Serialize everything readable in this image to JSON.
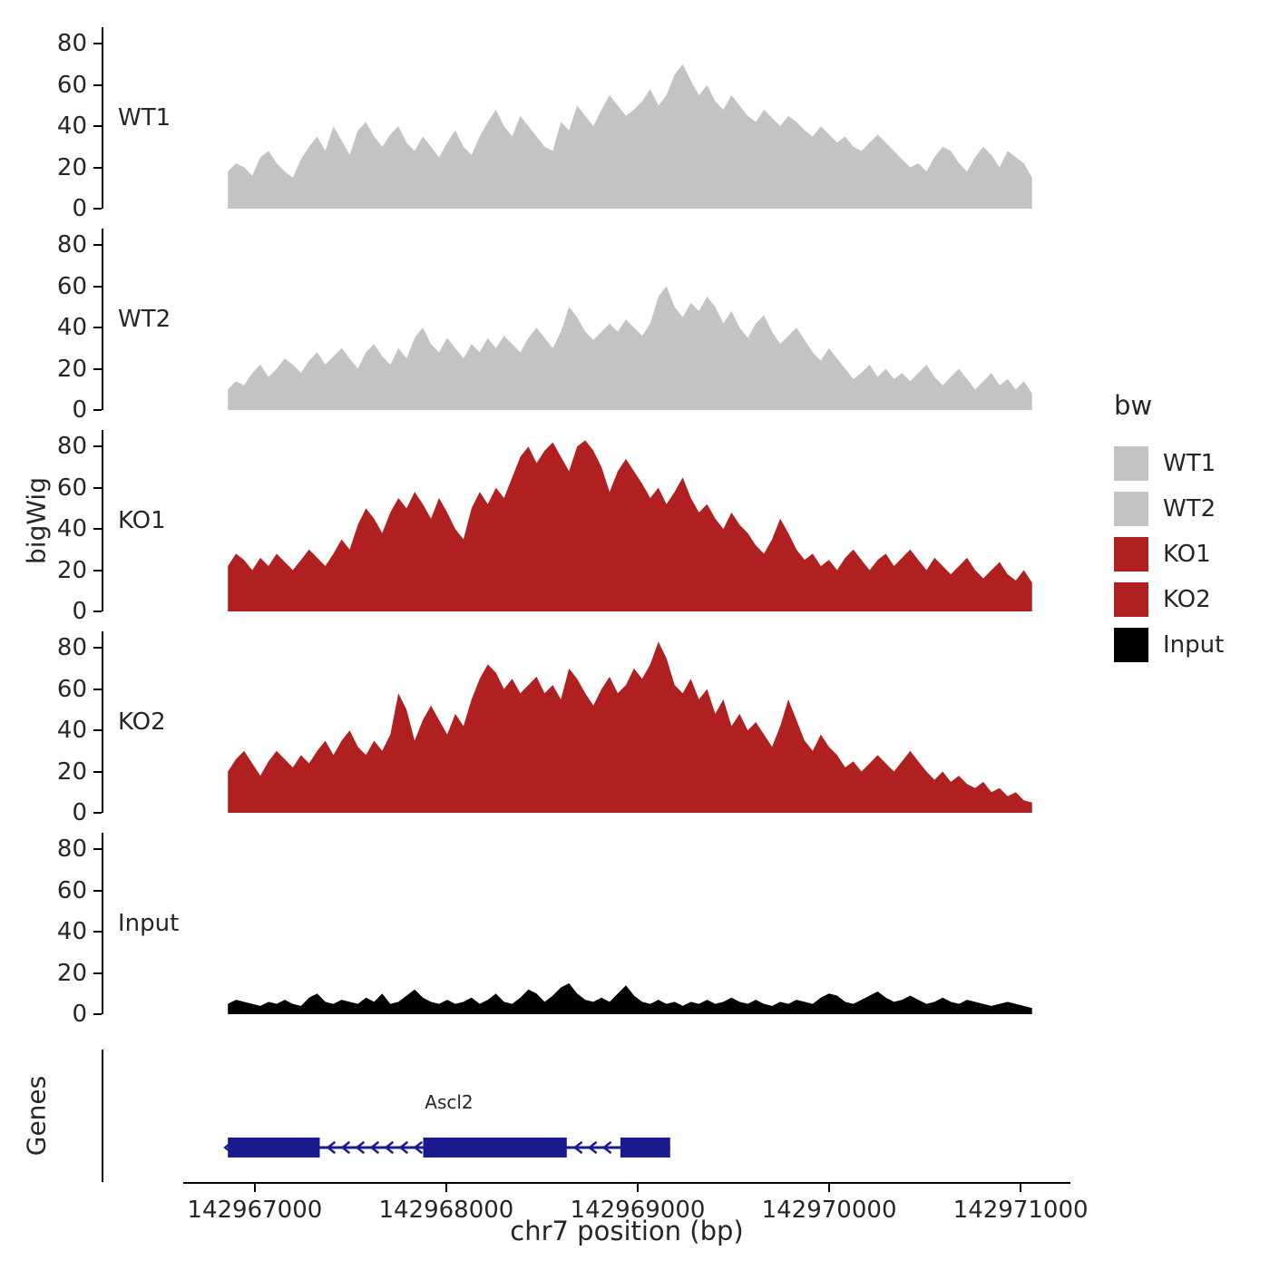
{
  "chart_data": {
    "type": "area",
    "title": "",
    "xlabel": "chr7 position (bp)",
    "ylabel": "bigWig",
    "genes_panel_label": "Genes",
    "legend_title": "bw",
    "x_domain": [
      142966200,
      142971260
    ],
    "x_start": 142966850,
    "x_end": 142971050,
    "xticks": [
      142967000,
      142968000,
      142969000,
      142970000,
      142971000
    ],
    "yticks": [
      0,
      20,
      40,
      60,
      80
    ],
    "ylim": [
      0,
      88
    ],
    "grid": false,
    "legend_position": "right",
    "tracks": [
      {
        "name": "WT1",
        "color": "#C3C3C3",
        "values": [
          18,
          22,
          20,
          16,
          25,
          28,
          22,
          18,
          15,
          24,
          30,
          35,
          28,
          40,
          33,
          26,
          38,
          42,
          35,
          30,
          36,
          40,
          32,
          28,
          35,
          30,
          25,
          32,
          38,
          30,
          26,
          35,
          42,
          48,
          40,
          35,
          45,
          40,
          35,
          30,
          28,
          42,
          38,
          50,
          45,
          40,
          48,
          55,
          50,
          45,
          48,
          52,
          58,
          50,
          55,
          65,
          70,
          62,
          55,
          60,
          52,
          48,
          55,
          50,
          45,
          42,
          48,
          44,
          40,
          45,
          42,
          38,
          35,
          40,
          36,
          32,
          35,
          30,
          28,
          32,
          36,
          32,
          28,
          24,
          20,
          22,
          18,
          25,
          30,
          28,
          22,
          18,
          25,
          30,
          26,
          20,
          28,
          25,
          22,
          15
        ]
      },
      {
        "name": "WT2",
        "color": "#C3C3C3",
        "values": [
          10,
          14,
          12,
          18,
          22,
          16,
          20,
          25,
          22,
          18,
          24,
          28,
          22,
          26,
          30,
          25,
          20,
          28,
          32,
          26,
          22,
          30,
          25,
          35,
          40,
          32,
          28,
          35,
          30,
          25,
          32,
          28,
          35,
          30,
          36,
          32,
          28,
          35,
          40,
          35,
          30,
          38,
          50,
          45,
          38,
          34,
          38,
          42,
          38,
          44,
          40,
          36,
          42,
          55,
          60,
          50,
          45,
          52,
          48,
          55,
          50,
          42,
          48,
          40,
          35,
          42,
          46,
          38,
          32,
          36,
          40,
          34,
          28,
          24,
          30,
          25,
          20,
          15,
          18,
          22,
          16,
          20,
          15,
          18,
          14,
          18,
          22,
          16,
          12,
          16,
          20,
          15,
          10,
          14,
          18,
          12,
          15,
          10,
          14,
          8
        ]
      },
      {
        "name": "KO1",
        "color": "#B02020",
        "values": [
          22,
          28,
          25,
          20,
          26,
          22,
          28,
          24,
          20,
          25,
          30,
          26,
          22,
          28,
          35,
          30,
          42,
          50,
          45,
          38,
          48,
          55,
          50,
          58,
          52,
          45,
          55,
          48,
          40,
          35,
          50,
          58,
          52,
          60,
          55,
          65,
          75,
          80,
          72,
          78,
          82,
          75,
          68,
          80,
          83,
          78,
          70,
          58,
          68,
          74,
          68,
          62,
          55,
          60,
          52,
          58,
          65,
          55,
          48,
          52,
          45,
          40,
          48,
          42,
          38,
          32,
          28,
          35,
          45,
          38,
          30,
          25,
          28,
          22,
          25,
          20,
          26,
          30,
          25,
          20,
          25,
          28,
          22,
          26,
          30,
          25,
          20,
          26,
          22,
          18,
          22,
          26,
          20,
          16,
          20,
          24,
          18,
          15,
          20,
          14
        ]
      },
      {
        "name": "KO2",
        "color": "#B02020",
        "values": [
          20,
          26,
          30,
          24,
          18,
          25,
          30,
          26,
          22,
          28,
          24,
          30,
          35,
          28,
          35,
          40,
          32,
          28,
          35,
          30,
          38,
          58,
          50,
          35,
          45,
          52,
          45,
          38,
          48,
          42,
          55,
          65,
          72,
          68,
          60,
          65,
          58,
          62,
          66,
          58,
          62,
          55,
          70,
          65,
          58,
          52,
          60,
          66,
          58,
          62,
          70,
          65,
          72,
          83,
          75,
          62,
          58,
          65,
          55,
          60,
          48,
          55,
          42,
          48,
          40,
          44,
          38,
          32,
          42,
          55,
          45,
          35,
          30,
          38,
          32,
          28,
          22,
          25,
          20,
          24,
          28,
          24,
          20,
          25,
          30,
          25,
          20,
          16,
          20,
          15,
          18,
          14,
          12,
          15,
          10,
          12,
          8,
          10,
          6,
          5
        ]
      },
      {
        "name": "Input",
        "color": "#000000",
        "values": [
          5,
          7,
          6,
          5,
          4,
          6,
          5,
          7,
          5,
          4,
          8,
          10,
          6,
          5,
          7,
          6,
          5,
          8,
          6,
          10,
          5,
          6,
          9,
          12,
          8,
          6,
          5,
          7,
          5,
          6,
          8,
          5,
          7,
          10,
          6,
          5,
          8,
          12,
          10,
          6,
          9,
          13,
          15,
          10,
          7,
          6,
          8,
          6,
          10,
          14,
          9,
          6,
          5,
          7,
          5,
          6,
          4,
          6,
          5,
          7,
          5,
          6,
          8,
          6,
          5,
          7,
          5,
          4,
          6,
          5,
          7,
          6,
          5,
          8,
          10,
          9,
          6,
          5,
          7,
          9,
          11,
          8,
          6,
          7,
          9,
          7,
          5,
          6,
          8,
          6,
          5,
          7,
          6,
          5,
          4,
          5,
          6,
          5,
          4,
          3
        ]
      }
    ],
    "legend": [
      {
        "label": "WT1",
        "color": "#C3C3C3"
      },
      {
        "label": "WT2",
        "color": "#C3C3C3"
      },
      {
        "label": "KO1",
        "color": "#B02020"
      },
      {
        "label": "KO2",
        "color": "#B02020"
      },
      {
        "label": "Input",
        "color": "#000000"
      }
    ],
    "gene": {
      "name": "Ascl2",
      "strand": "-",
      "color": "#1A1A8C",
      "start": 142966850,
      "end": 142969160,
      "exons": [
        [
          142966850,
          142967330
        ],
        [
          142967870,
          142968620
        ],
        [
          142968900,
          142969160
        ]
      ]
    }
  }
}
